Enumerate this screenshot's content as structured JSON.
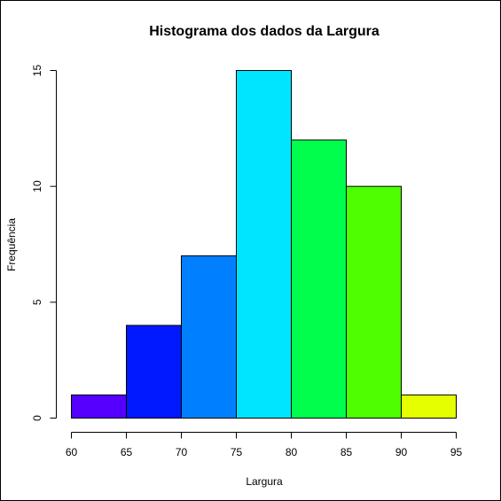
{
  "chart_data": {
    "type": "bar",
    "title": "Histograma dos dados da Largura",
    "xlabel": "Largura",
    "ylabel": "Frequência",
    "bins": [
      {
        "from": 60,
        "to": 65,
        "count": 1,
        "color": "#5500FF"
      },
      {
        "from": 65,
        "to": 70,
        "count": 4,
        "color": "#0019FF"
      },
      {
        "from": 70,
        "to": 75,
        "count": 7,
        "color": "#0080FF"
      },
      {
        "from": 75,
        "to": 80,
        "count": 15,
        "color": "#00E5FF"
      },
      {
        "from": 80,
        "to": 85,
        "count": 12,
        "color": "#00FF4D"
      },
      {
        "from": 85,
        "to": 90,
        "count": 10,
        "color": "#4DFF00"
      },
      {
        "from": 90,
        "to": 95,
        "count": 1,
        "color": "#E6FF00"
      }
    ],
    "xlim": [
      60,
      95
    ],
    "ylim": [
      0,
      15
    ],
    "x_ticks": [
      60,
      65,
      70,
      75,
      80,
      85,
      90,
      95
    ],
    "y_ticks": [
      0,
      5,
      10,
      15
    ],
    "grid": false,
    "legend": "none"
  }
}
